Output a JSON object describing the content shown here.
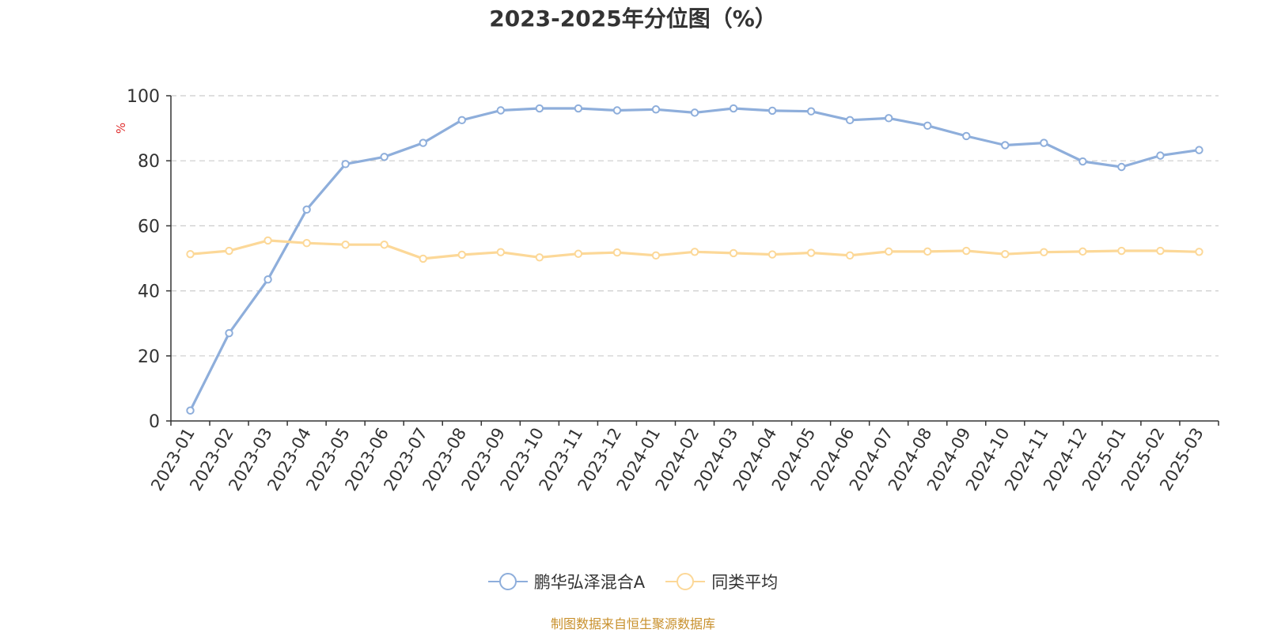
{
  "chart_data": {
    "type": "line",
    "title": "2023-2025年分位图（%）",
    "ylabel": "%",
    "xlabel": "",
    "ylim": [
      0,
      100
    ],
    "yticks": [
      0,
      20,
      40,
      60,
      80,
      100
    ],
    "grid": true,
    "legend_position": "bottom-center",
    "categories": [
      "2023-01",
      "2023-02",
      "2023-03",
      "2023-04",
      "2023-05",
      "2023-06",
      "2023-07",
      "2023-08",
      "2023-09",
      "2023-10",
      "2023-11",
      "2023-12",
      "2024-01",
      "2024-02",
      "2024-03",
      "2024-04",
      "2024-05",
      "2024-06",
      "2024-07",
      "2024-08",
      "2024-09",
      "2024-10",
      "2024-11",
      "2024-12",
      "2025-01",
      "2025-02",
      "2025-03"
    ],
    "series": [
      {
        "name": "鹏华弘泽混合A",
        "color": "#8eaedb",
        "values": [
          3.2,
          27,
          43.5,
          65,
          79,
          81.2,
          85.5,
          92.5,
          95.5,
          96.1,
          96.1,
          95.5,
          95.8,
          94.8,
          96.1,
          95.4,
          95.2,
          92.5,
          93.1,
          90.8,
          87.6,
          84.8,
          85.5,
          79.8,
          78.1,
          81.6,
          83.3
        ]
      },
      {
        "name": "同类平均",
        "color": "#fcd898",
        "values": [
          51.3,
          52.3,
          55.5,
          54.7,
          54.2,
          54.2,
          49.9,
          51.1,
          51.9,
          50.3,
          51.4,
          51.8,
          50.9,
          52,
          51.6,
          51.2,
          51.7,
          50.9,
          52.1,
          52.1,
          52.3,
          51.3,
          51.9,
          52.1,
          52.3,
          52.3,
          52
        ]
      }
    ]
  },
  "source_text": "制图数据来自恒生聚源数据库",
  "colors": {
    "source_text": "#c8902c",
    "ylabel": "#e03030",
    "axis": "#333333",
    "grid": "#cccccc"
  }
}
